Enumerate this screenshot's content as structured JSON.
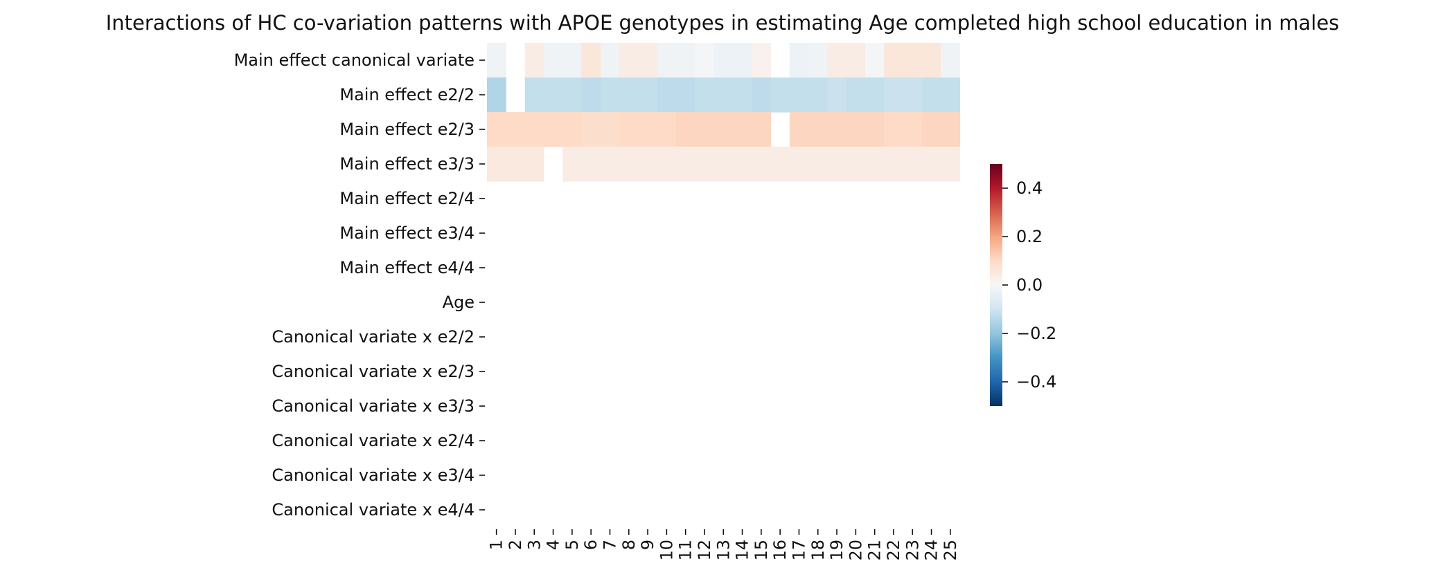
{
  "chart_data": {
    "type": "heatmap",
    "title": "Interactions of HC co-variation patterns with APOE genotypes in estimating Age completed high school education in males",
    "rows": [
      "Main effect canonical variate",
      "Main effect e2/2",
      "Main effect e2/3",
      "Main effect e3/3",
      "Main effect e2/4",
      "Main effect e3/4",
      "Main effect e4/4",
      "Age",
      "Canonical variate x e2/2",
      "Canonical variate x e2/3",
      "Canonical variate x e3/3",
      "Canonical variate x e2/4",
      "Canonical variate x e3/4",
      "Canonical variate x e4/4"
    ],
    "columns": [
      "1",
      "2",
      "3",
      "4",
      "5",
      "6",
      "7",
      "8",
      "9",
      "10",
      "11",
      "12",
      "13",
      "14",
      "15",
      "16",
      "17",
      "18",
      "19",
      "20",
      "21",
      "22",
      "23",
      "24",
      "25"
    ],
    "values": [
      [
        -0.02,
        null,
        0.04,
        -0.02,
        -0.02,
        0.06,
        -0.02,
        0.04,
        0.04,
        -0.02,
        -0.02,
        -0.01,
        -0.03,
        -0.03,
        0.02,
        null,
        -0.03,
        -0.02,
        0.04,
        0.04,
        -0.01,
        0.06,
        0.06,
        0.06,
        -0.02
      ],
      [
        -0.15,
        null,
        -0.12,
        -0.12,
        -0.12,
        -0.13,
        -0.12,
        -0.12,
        -0.12,
        -0.13,
        -0.13,
        -0.12,
        -0.12,
        -0.12,
        -0.13,
        -0.12,
        -0.12,
        -0.12,
        -0.11,
        -0.12,
        -0.12,
        -0.11,
        -0.11,
        -0.12,
        -0.12
      ],
      [
        0.1,
        0.1,
        0.1,
        0.1,
        0.1,
        0.09,
        0.09,
        0.1,
        0.1,
        0.1,
        0.11,
        0.11,
        0.11,
        0.11,
        0.11,
        null,
        0.11,
        0.11,
        0.11,
        0.11,
        0.11,
        0.1,
        0.1,
        0.11,
        0.11
      ],
      [
        0.05,
        0.05,
        0.05,
        null,
        0.04,
        0.04,
        0.04,
        0.04,
        0.04,
        0.04,
        0.04,
        0.04,
        0.04,
        0.04,
        0.04,
        0.04,
        0.04,
        0.04,
        0.04,
        0.04,
        0.04,
        0.04,
        0.04,
        0.04,
        0.04
      ],
      [
        null,
        null,
        null,
        null,
        null,
        null,
        null,
        null,
        null,
        null,
        null,
        null,
        null,
        null,
        null,
        null,
        null,
        null,
        null,
        null,
        null,
        null,
        null,
        null,
        null
      ],
      [
        null,
        null,
        null,
        null,
        null,
        null,
        null,
        null,
        null,
        null,
        null,
        null,
        null,
        null,
        null,
        null,
        null,
        null,
        null,
        null,
        null,
        null,
        null,
        null,
        null
      ],
      [
        null,
        null,
        null,
        null,
        null,
        null,
        null,
        null,
        null,
        null,
        null,
        null,
        null,
        null,
        null,
        null,
        null,
        null,
        null,
        null,
        null,
        null,
        null,
        null,
        null
      ],
      [
        null,
        null,
        null,
        null,
        null,
        null,
        null,
        null,
        null,
        null,
        null,
        null,
        null,
        null,
        null,
        null,
        null,
        null,
        null,
        null,
        null,
        null,
        null,
        null,
        null
      ],
      [
        null,
        null,
        null,
        null,
        null,
        null,
        null,
        null,
        null,
        null,
        null,
        null,
        null,
        null,
        null,
        null,
        null,
        null,
        null,
        null,
        null,
        null,
        null,
        null,
        null
      ],
      [
        null,
        null,
        null,
        null,
        null,
        null,
        null,
        null,
        null,
        null,
        null,
        null,
        null,
        null,
        null,
        null,
        null,
        null,
        null,
        null,
        null,
        null,
        null,
        null,
        null
      ],
      [
        null,
        null,
        null,
        null,
        null,
        null,
        null,
        null,
        null,
        null,
        null,
        null,
        null,
        null,
        null,
        null,
        null,
        null,
        null,
        null,
        null,
        null,
        null,
        null,
        null
      ],
      [
        null,
        null,
        null,
        null,
        null,
        null,
        null,
        null,
        null,
        null,
        null,
        null,
        null,
        null,
        null,
        null,
        null,
        null,
        null,
        null,
        null,
        null,
        null,
        null,
        null
      ],
      [
        null,
        null,
        null,
        null,
        null,
        null,
        null,
        null,
        null,
        null,
        null,
        null,
        null,
        null,
        null,
        null,
        null,
        null,
        null,
        null,
        null,
        null,
        null,
        null,
        null
      ],
      [
        null,
        null,
        null,
        null,
        null,
        null,
        null,
        null,
        null,
        null,
        null,
        null,
        null,
        null,
        null,
        null,
        null,
        null,
        null,
        null,
        null,
        null,
        null,
        null,
        null
      ]
    ],
    "colorbar": {
      "colormap": "RdBu_r",
      "vmin": -0.5,
      "vmax": 0.5,
      "ticks": [
        0.4,
        0.2,
        0.0,
        -0.2,
        -0.4
      ],
      "tick_labels": [
        "0.4",
        "0.2",
        "0.0",
        "−0.2",
        "−0.4"
      ]
    },
    "xlabel": "",
    "ylabel": "",
    "grid": false
  }
}
